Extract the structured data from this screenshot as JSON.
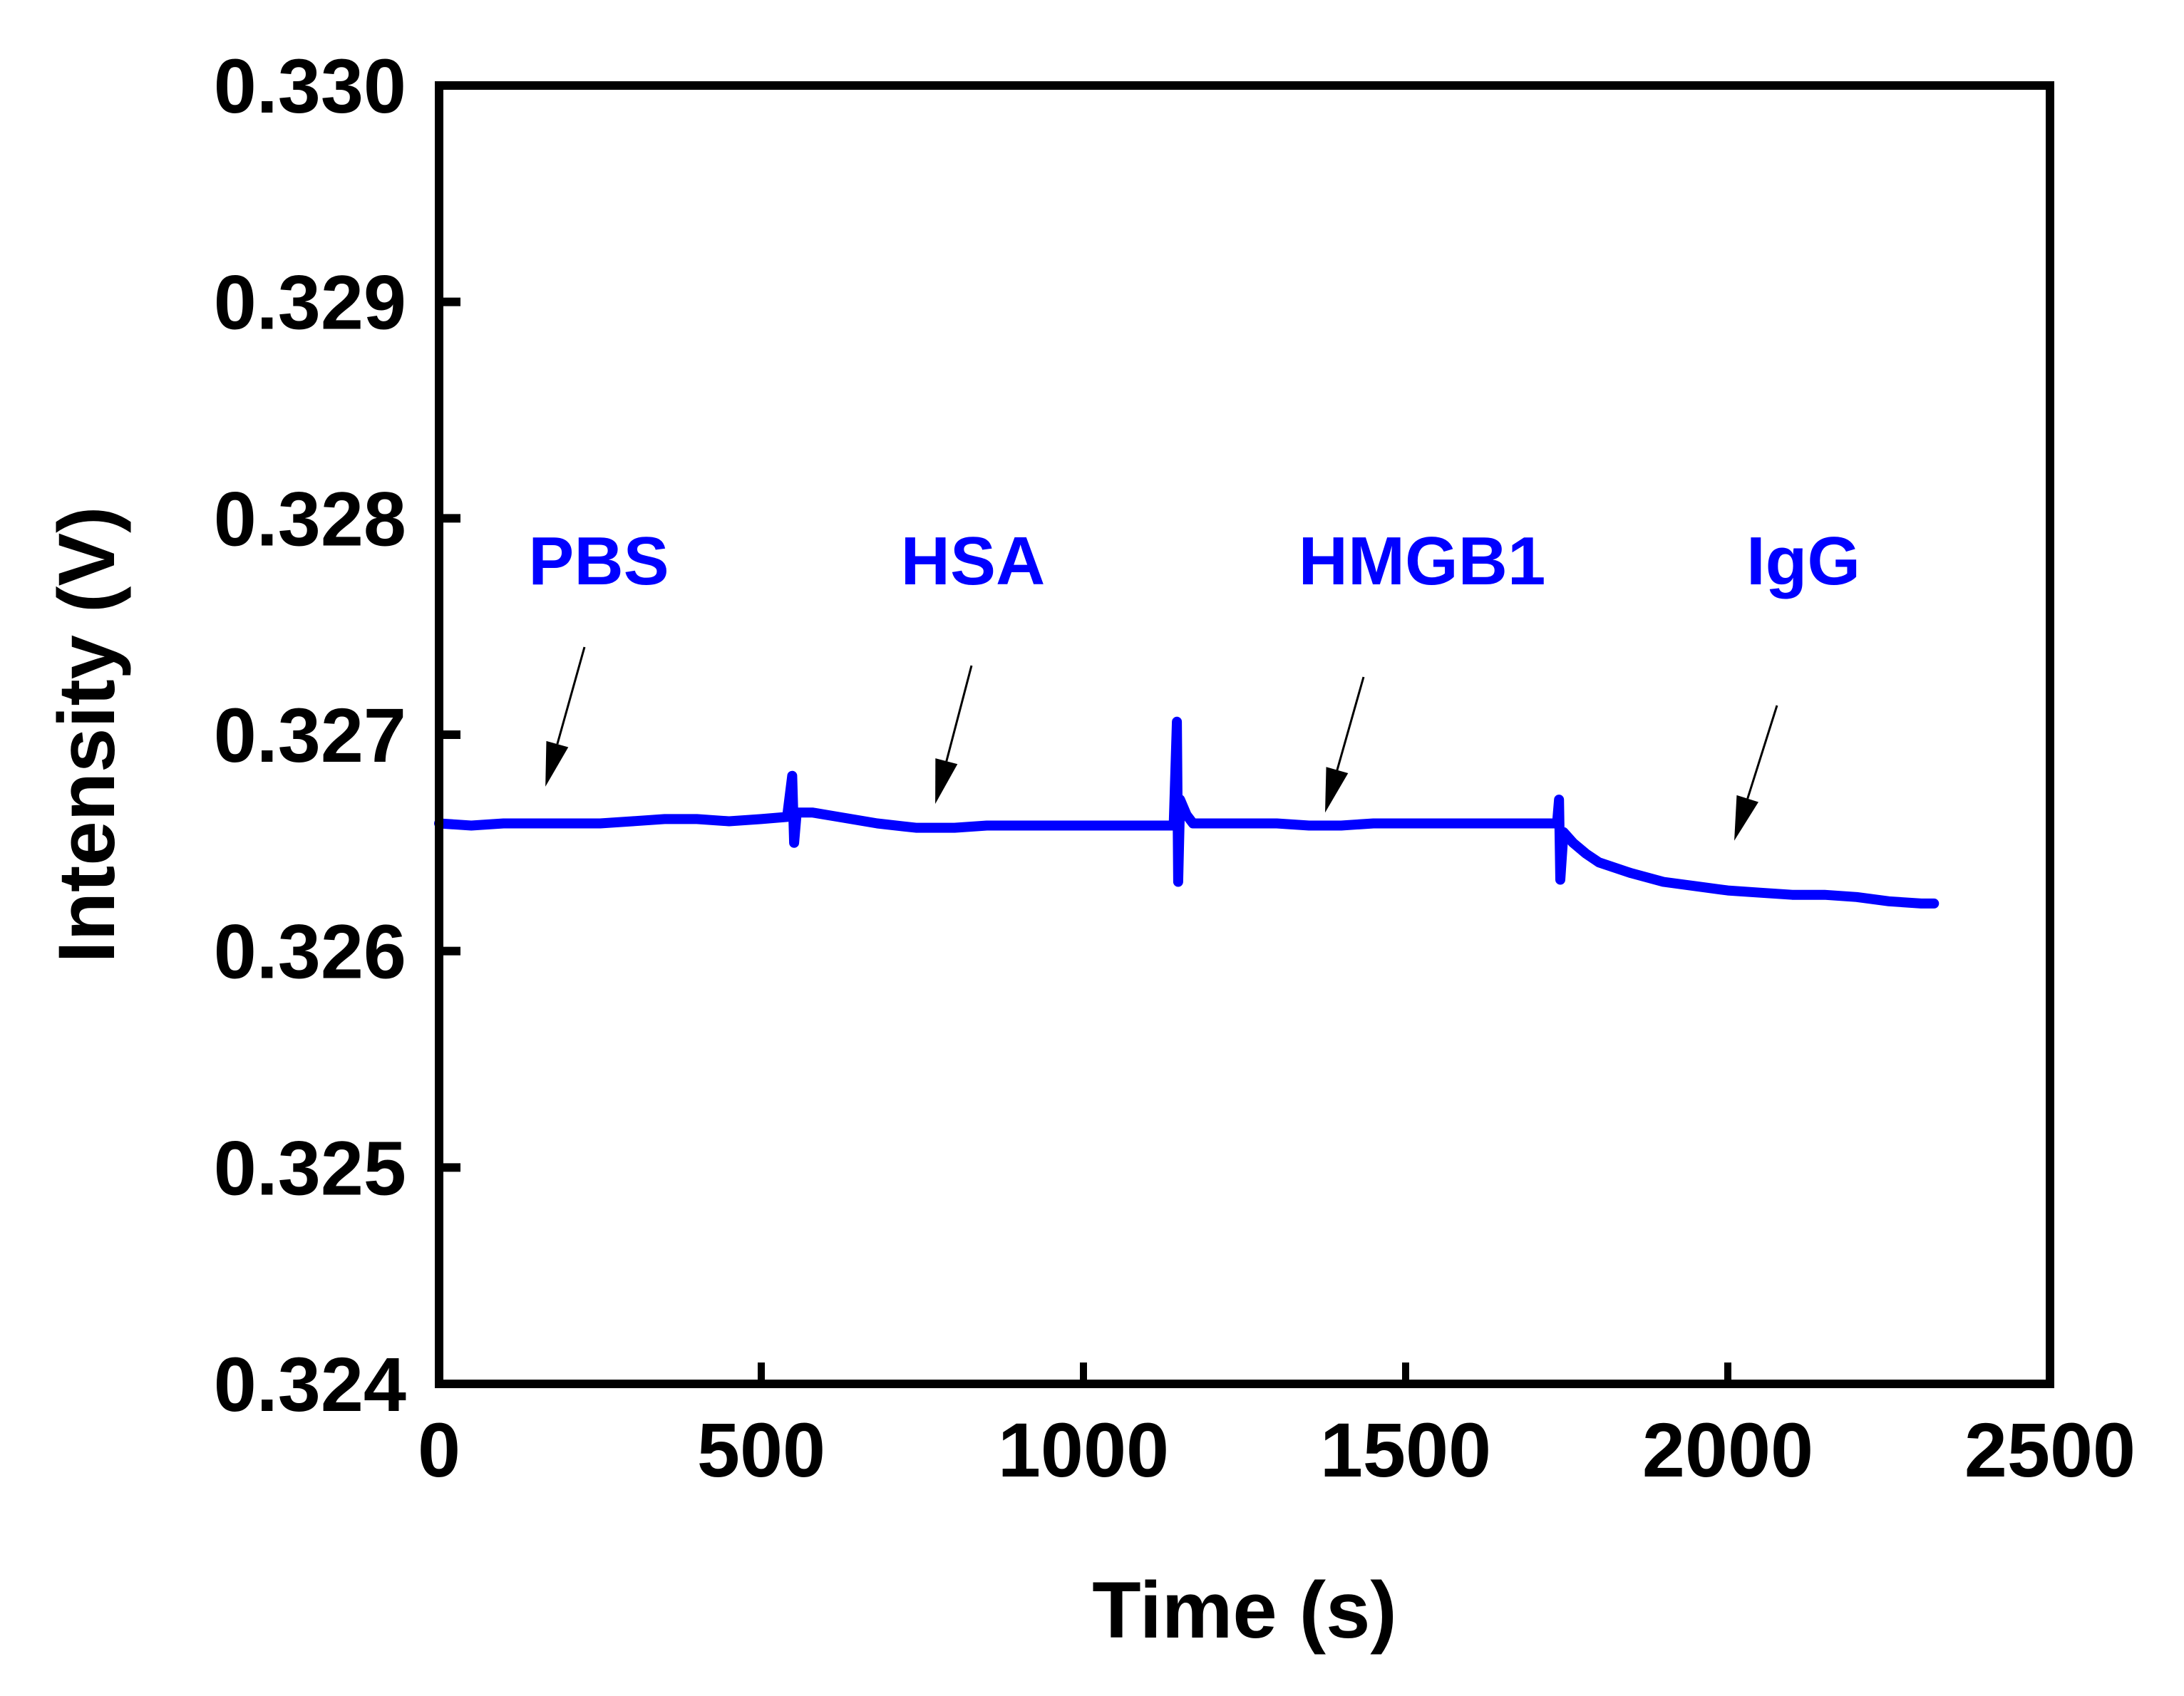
{
  "chart_data": {
    "type": "line",
    "title": "",
    "xlabel": "Time (s)",
    "ylabel": "Intensity (V)",
    "xlim": [
      0,
      2500
    ],
    "ylim": [
      0.324,
      0.33
    ],
    "xticks": [
      0,
      500,
      1000,
      1500,
      2000,
      2500
    ],
    "yticks": [
      "0.324",
      "0.325",
      "0.326",
      "0.327",
      "0.328",
      "0.329",
      "0.330"
    ],
    "grid": false,
    "legend": null,
    "series": [
      {
        "name": "Intensity",
        "color": "#0000ff",
        "points": [
          [
            0,
            0.32659
          ],
          [
            50,
            0.32658
          ],
          [
            100,
            0.32659
          ],
          [
            150,
            0.32659
          ],
          [
            200,
            0.32659
          ],
          [
            250,
            0.32659
          ],
          [
            300,
            0.3266
          ],
          [
            350,
            0.32661
          ],
          [
            400,
            0.32661
          ],
          [
            450,
            0.3266
          ],
          [
            500,
            0.32661
          ],
          [
            540,
            0.32662
          ],
          [
            548,
            0.32681
          ],
          [
            551,
            0.3265
          ],
          [
            555,
            0.32664
          ],
          [
            580,
            0.32664
          ],
          [
            620,
            0.32662
          ],
          [
            680,
            0.32659
          ],
          [
            740,
            0.32657
          ],
          [
            800,
            0.32657
          ],
          [
            850,
            0.32658
          ],
          [
            900,
            0.32658
          ],
          [
            950,
            0.32658
          ],
          [
            1000,
            0.32658
          ],
          [
            1050,
            0.32658
          ],
          [
            1100,
            0.32658
          ],
          [
            1140,
            0.32658
          ],
          [
            1145,
            0.32706
          ],
          [
            1147,
            0.32632
          ],
          [
            1150,
            0.3267
          ],
          [
            1160,
            0.32663
          ],
          [
            1170,
            0.32659
          ],
          [
            1200,
            0.32659
          ],
          [
            1250,
            0.32659
          ],
          [
            1300,
            0.32659
          ],
          [
            1350,
            0.32658
          ],
          [
            1400,
            0.32658
          ],
          [
            1450,
            0.32659
          ],
          [
            1500,
            0.32659
          ],
          [
            1550,
            0.32659
          ],
          [
            1600,
            0.32659
          ],
          [
            1650,
            0.32659
          ],
          [
            1700,
            0.32659
          ],
          [
            1735,
            0.32659
          ],
          [
            1738,
            0.3267
          ],
          [
            1740,
            0.32633
          ],
          [
            1745,
            0.32655
          ],
          [
            1760,
            0.3265
          ],
          [
            1780,
            0.32645
          ],
          [
            1800,
            0.32641
          ],
          [
            1850,
            0.32636
          ],
          [
            1900,
            0.32632
          ],
          [
            1950,
            0.3263
          ],
          [
            2000,
            0.32628
          ],
          [
            2050,
            0.32627
          ],
          [
            2100,
            0.32626
          ],
          [
            2150,
            0.32626
          ],
          [
            2200,
            0.32625
          ],
          [
            2250,
            0.32623
          ],
          [
            2300,
            0.32622
          ],
          [
            2320,
            0.32622
          ]
        ]
      }
    ],
    "annotations": [
      {
        "text": "PBS",
        "color": "#0000ff",
        "arrow_to": [
          165,
          0.32676
        ]
      },
      {
        "text": "HSA",
        "color": "#0000ff",
        "arrow_to": [
          770,
          0.32668
        ]
      },
      {
        "text": "HMGB1",
        "color": "#0000ff",
        "arrow_to": [
          1375,
          0.32664
        ]
      },
      {
        "text": "IgG",
        "color": "#0000ff",
        "arrow_to": [
          2010,
          0.32651
        ]
      }
    ]
  },
  "colors": {
    "trace": "#0000ff",
    "axes": "#000000",
    "annotation": "#0000ff",
    "arrow": "#000000"
  }
}
